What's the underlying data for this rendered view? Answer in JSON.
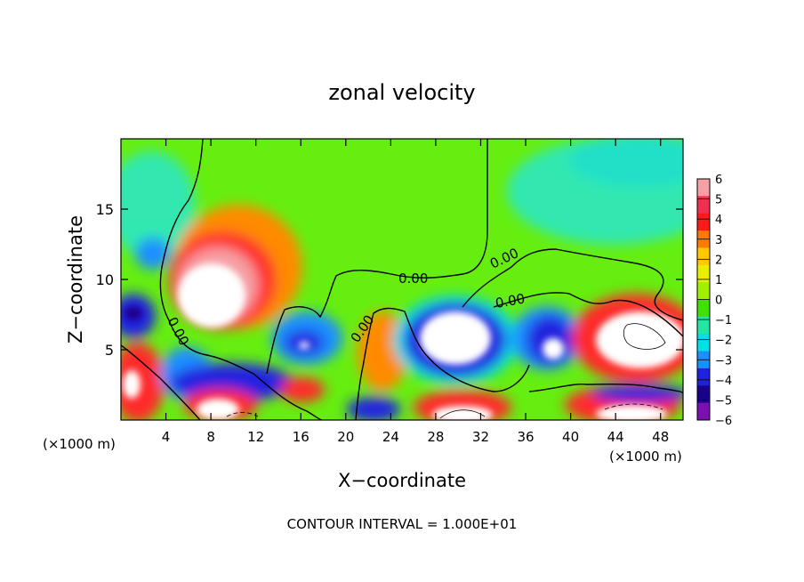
{
  "chart_data": {
    "type": "heatmap",
    "title": "zonal velocity",
    "xlabel": "X−coordinate",
    "ylabel": "Z−coordinate",
    "x_unit_left": "(×1000 m)",
    "x_unit_right": "(×1000 m)",
    "xlim": [
      0,
      50
    ],
    "ylim": [
      0,
      20
    ],
    "x_ticks": [
      4,
      8,
      12,
      16,
      20,
      24,
      28,
      32,
      36,
      40,
      44,
      48
    ],
    "y_ticks": [
      5,
      10,
      15
    ],
    "colorbar": {
      "levels": [
        6,
        5,
        4,
        3,
        2,
        1,
        0,
        -1,
        -2,
        -3,
        -4,
        -5,
        -6
      ],
      "colors": [
        "#f5a0a6",
        "#f03050",
        "#ff1a1a",
        "#ff7a00",
        "#ffc800",
        "#e8f000",
        "#a0f000",
        "#40e000",
        "#20e8a0",
        "#00e0e8",
        "#1a90ff",
        "#2020e0",
        "#1a008a",
        "#7a10b0"
      ],
      "over_color": "#ffffff"
    },
    "contour_labels": [
      "0.00",
      "0.00",
      "0.00",
      "0.00",
      "0.00"
    ],
    "footnote": "CONTOUR INTERVAL = 1.000E+01",
    "grid": false,
    "legend_placement": "right"
  }
}
